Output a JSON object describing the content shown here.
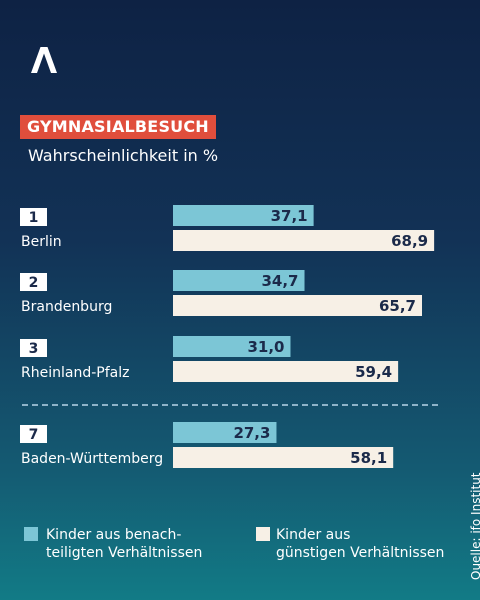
{
  "header": {
    "logo_icon": "a-logo-icon",
    "title": "GYMNASIALBESUCH",
    "subtitle": "Wahrscheinlichkeit in %"
  },
  "colors": {
    "disadvantaged": "#7cc6d6",
    "favorable": "#f7f0e6",
    "accent": "#e04e3c",
    "bar_text": "#1b2a4a"
  },
  "chart_data": {
    "type": "bar",
    "orientation": "horizontal",
    "title": "GYMNASIALBESUCH",
    "subtitle": "Wahrscheinlichkeit in %",
    "categories": [
      {
        "rank": "1",
        "name": "Berlin"
      },
      {
        "rank": "2",
        "name": "Brandenburg"
      },
      {
        "rank": "3",
        "name": "Rheinland-Pfalz"
      },
      {
        "rank": "7",
        "name": "Baden-Württemberg"
      }
    ],
    "series": [
      {
        "name": "Kinder aus benach-\nteiligten Verhältnissen",
        "values": [
          37.1,
          34.7,
          31.0,
          27.3
        ],
        "labels": [
          "37,1",
          "34,7",
          "31,0",
          "27,3"
        ]
      },
      {
        "name": "Kinder aus\ngünstigen Verhältnissen",
        "values": [
          68.9,
          65.7,
          59.4,
          58.1
        ],
        "labels": [
          "68,9",
          "65,7",
          "59,4",
          "58,1"
        ]
      }
    ],
    "xlim": [
      0,
      100
    ],
    "grid": false,
    "legend": "bottom"
  },
  "legend": [
    {
      "label": "Kinder aus benach-\nteiligten Verhältnissen",
      "icon": "cyan-square"
    },
    {
      "label": "Kinder aus\ngünstigen Verhältnissen",
      "icon": "cream-square"
    }
  ],
  "source": "Quelle: ifo Institut"
}
